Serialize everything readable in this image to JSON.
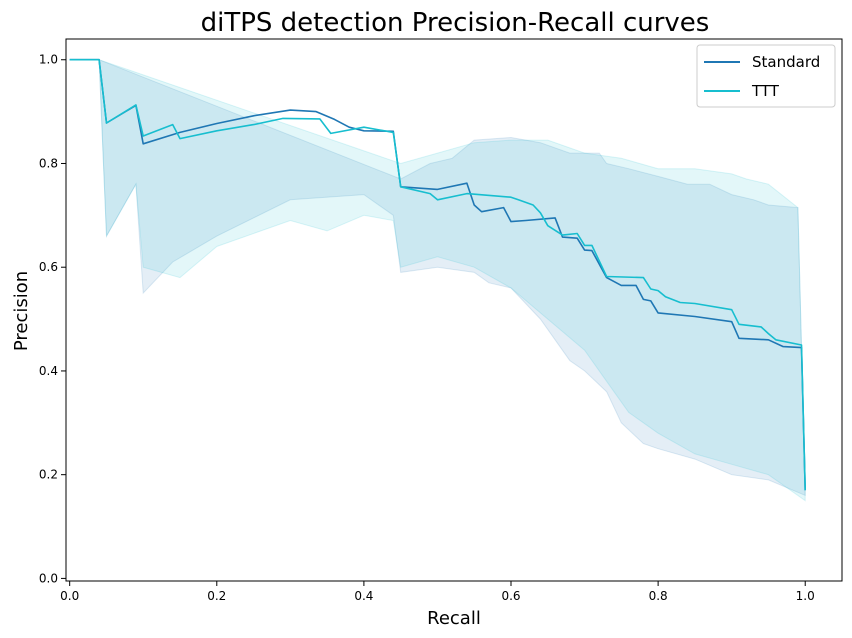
{
  "chart_data": {
    "type": "line",
    "title": "diTPS detection Precision-Recall curves",
    "xlabel": "Recall",
    "ylabel": "Precision",
    "xlim": [
      -0.005,
      1.05
    ],
    "ylim": [
      -0.005,
      1.04
    ],
    "xticks": [
      0.0,
      0.2,
      0.4,
      0.6,
      0.8,
      1.0
    ],
    "xtick_labels": [
      "0.0",
      "0.2",
      "0.4",
      "0.6",
      "0.8",
      "1.0"
    ],
    "yticks": [
      0.0,
      0.2,
      0.4,
      0.6,
      0.8,
      1.0
    ],
    "ytick_labels": [
      "0.0",
      "0.2",
      "0.4",
      "0.6",
      "0.8",
      "1.0"
    ],
    "grid": false,
    "legend_position": "top-right",
    "colors": {
      "standard": "#1f77b4",
      "ttt": "#17becf",
      "standard_band": "#1f77b4",
      "ttt_band": "#17becf"
    },
    "series": [
      {
        "name": "Standard",
        "x": [
          0.0,
          0.04,
          0.05,
          0.09,
          0.1,
          0.15,
          0.2,
          0.25,
          0.3,
          0.335,
          0.36,
          0.38,
          0.4,
          0.44,
          0.45,
          0.5,
          0.54,
          0.55,
          0.56,
          0.59,
          0.6,
          0.62,
          0.66,
          0.67,
          0.69,
          0.7,
          0.71,
          0.73,
          0.75,
          0.77,
          0.78,
          0.79,
          0.8,
          0.85,
          0.9,
          0.91,
          0.95,
          0.97,
          0.995,
          1.0
        ],
        "y": [
          1.0,
          1.0,
          0.878,
          0.912,
          0.838,
          0.86,
          0.877,
          0.892,
          0.903,
          0.9,
          0.885,
          0.87,
          0.863,
          0.862,
          0.755,
          0.75,
          0.762,
          0.72,
          0.707,
          0.715,
          0.688,
          0.69,
          0.695,
          0.658,
          0.656,
          0.633,
          0.632,
          0.58,
          0.565,
          0.565,
          0.538,
          0.535,
          0.512,
          0.505,
          0.495,
          0.463,
          0.46,
          0.447,
          0.445,
          0.17
        ]
      },
      {
        "name": "TTT",
        "x": [
          0.0,
          0.04,
          0.05,
          0.09,
          0.1,
          0.14,
          0.15,
          0.2,
          0.25,
          0.29,
          0.34,
          0.355,
          0.4,
          0.44,
          0.45,
          0.49,
          0.5,
          0.54,
          0.6,
          0.61,
          0.63,
          0.64,
          0.65,
          0.67,
          0.69,
          0.7,
          0.71,
          0.73,
          0.78,
          0.79,
          0.8,
          0.81,
          0.83,
          0.85,
          0.9,
          0.91,
          0.94,
          0.95,
          0.96,
          0.995,
          1.0
        ],
        "y": [
          1.0,
          1.0,
          0.878,
          0.913,
          0.853,
          0.875,
          0.848,
          0.863,
          0.875,
          0.887,
          0.886,
          0.858,
          0.87,
          0.86,
          0.755,
          0.742,
          0.73,
          0.742,
          0.735,
          0.73,
          0.72,
          0.705,
          0.68,
          0.662,
          0.665,
          0.642,
          0.642,
          0.582,
          0.58,
          0.558,
          0.555,
          0.543,
          0.532,
          0.53,
          0.518,
          0.49,
          0.485,
          0.472,
          0.46,
          0.45,
          0.17
        ]
      }
    ],
    "bands": [
      {
        "name": "Standard band",
        "upper": {
          "x": [
            0.0,
            0.04,
            0.45,
            0.49,
            0.52,
            0.55,
            0.6,
            0.64,
            0.68,
            0.7,
            0.72,
            0.73,
            0.76,
            0.8,
            0.84,
            0.87,
            0.9,
            0.93,
            0.95,
            0.99,
            1.0
          ],
          "y": [
            1.0,
            1.0,
            0.77,
            0.8,
            0.81,
            0.845,
            0.85,
            0.84,
            0.82,
            0.82,
            0.82,
            0.8,
            0.79,
            0.775,
            0.76,
            0.76,
            0.74,
            0.73,
            0.72,
            0.715,
            0.17
          ]
        },
        "lower": {
          "x": [
            0.0,
            0.04,
            0.05,
            0.09,
            0.1,
            0.14,
            0.2,
            0.3,
            0.4,
            0.44,
            0.45,
            0.5,
            0.55,
            0.57,
            0.6,
            0.64,
            0.68,
            0.7,
            0.73,
            0.75,
            0.78,
            0.8,
            0.85,
            0.9,
            0.95,
            1.0
          ],
          "y": [
            1.0,
            1.0,
            0.66,
            0.76,
            0.55,
            0.61,
            0.66,
            0.73,
            0.74,
            0.7,
            0.59,
            0.6,
            0.59,
            0.57,
            0.56,
            0.5,
            0.42,
            0.4,
            0.36,
            0.3,
            0.26,
            0.25,
            0.23,
            0.2,
            0.19,
            0.16
          ]
        }
      },
      {
        "name": "TTT band",
        "upper": {
          "x": [
            0.0,
            0.04,
            0.45,
            0.5,
            0.55,
            0.6,
            0.65,
            0.7,
            0.75,
            0.8,
            0.85,
            0.9,
            0.92,
            0.95,
            0.99,
            1.0
          ],
          "y": [
            1.0,
            1.0,
            0.8,
            0.82,
            0.84,
            0.845,
            0.845,
            0.82,
            0.81,
            0.79,
            0.79,
            0.78,
            0.77,
            0.76,
            0.715,
            0.17
          ]
        },
        "lower": {
          "x": [
            0.0,
            0.04,
            0.05,
            0.09,
            0.1,
            0.15,
            0.2,
            0.3,
            0.35,
            0.4,
            0.44,
            0.45,
            0.5,
            0.55,
            0.6,
            0.65,
            0.7,
            0.73,
            0.76,
            0.8,
            0.85,
            0.9,
            0.95,
            1.0
          ],
          "y": [
            1.0,
            1.0,
            0.66,
            0.76,
            0.6,
            0.58,
            0.64,
            0.69,
            0.67,
            0.7,
            0.69,
            0.6,
            0.62,
            0.6,
            0.56,
            0.5,
            0.44,
            0.38,
            0.32,
            0.28,
            0.24,
            0.22,
            0.2,
            0.15
          ]
        }
      }
    ]
  }
}
